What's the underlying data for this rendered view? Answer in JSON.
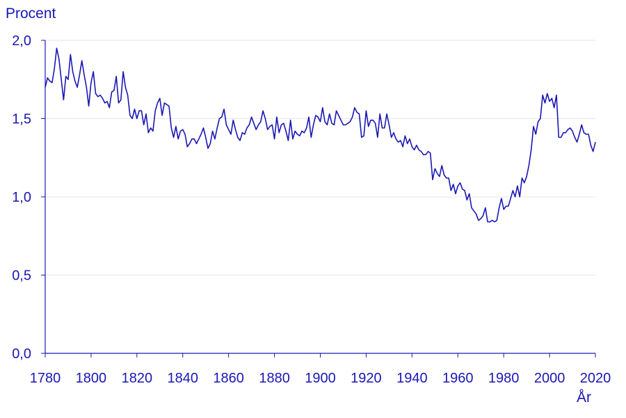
{
  "chart_data": {
    "type": "line",
    "title": "",
    "ylabel": "Procent",
    "xlabel": "År",
    "xlim": [
      1780,
      2020
    ],
    "ylim": [
      0,
      2.0
    ],
    "xticks": [
      "1780",
      "1800",
      "1820",
      "1840",
      "1860",
      "1880",
      "1900",
      "1920",
      "1940",
      "1960",
      "1980",
      "2000",
      "2020"
    ],
    "yticks": [
      "0,0",
      "0,5",
      "1,0",
      "1,5",
      "2,0"
    ],
    "grid": true,
    "color": "#1a17b4",
    "series": [
      {
        "x": [
          1780,
          1781,
          1782,
          1783,
          1784,
          1785,
          1786,
          1787,
          1788,
          1789,
          1790,
          1791,
          1792,
          1793,
          1794,
          1795,
          1796,
          1797,
          1798,
          1799,
          1800,
          1801,
          1802,
          1803,
          1804,
          1805,
          1806,
          1807,
          1808,
          1809,
          1810,
          1811,
          1812,
          1813,
          1814,
          1815,
          1816,
          1817,
          1818,
          1819,
          1820,
          1821,
          1822,
          1823,
          1824,
          1825,
          1826,
          1827,
          1828,
          1829,
          1830,
          1831,
          1832,
          1833,
          1834,
          1835,
          1836,
          1837,
          1838,
          1839,
          1840,
          1841,
          1842,
          1843,
          1844,
          1845,
          1846,
          1847,
          1848,
          1849,
          1850,
          1851,
          1852,
          1853,
          1854,
          1855,
          1856,
          1857,
          1858,
          1859,
          1860,
          1861,
          1862,
          1863,
          1864,
          1865,
          1866,
          1867,
          1868,
          1869,
          1870,
          1871,
          1872,
          1873,
          1874,
          1875,
          1876,
          1877,
          1878,
          1879,
          1880,
          1881,
          1882,
          1883,
          1884,
          1885,
          1886,
          1887,
          1888,
          1889,
          1890,
          1891,
          1892,
          1893,
          1894,
          1895,
          1896,
          1897,
          1898,
          1899,
          1900,
          1901,
          1902,
          1903,
          1904,
          1905,
          1906,
          1907,
          1908,
          1909,
          1910,
          1911,
          1912,
          1913,
          1914,
          1915,
          1916,
          1917,
          1918,
          1919,
          1920,
          1921,
          1922,
          1923,
          1924,
          1925,
          1926,
          1927,
          1928,
          1929,
          1930,
          1931,
          1932,
          1933,
          1934,
          1935,
          1936,
          1937,
          1938,
          1939,
          1940,
          1941,
          1942,
          1943,
          1944,
          1945,
          1946,
          1947,
          1948,
          1949,
          1950,
          1951,
          1952,
          1953,
          1954,
          1955,
          1956,
          1957,
          1958,
          1959,
          1960,
          1961,
          1962,
          1963,
          1964,
          1965,
          1966,
          1967,
          1968,
          1969,
          1970,
          1971,
          1972,
          1973,
          1974,
          1975,
          1976,
          1977,
          1978,
          1979,
          1980,
          1981,
          1982,
          1983,
          1984,
          1985,
          1986,
          1987,
          1988,
          1989,
          1990,
          1991,
          1992,
          1993,
          1994,
          1995,
          1996,
          1997,
          1998,
          1999,
          2000,
          2001,
          2002,
          2003,
          2004,
          2005,
          2006,
          2007,
          2008,
          2009,
          2010,
          2011,
          2012,
          2013,
          2014,
          2015,
          2016,
          2017,
          2018,
          2019,
          2020
        ],
        "y": [
          1.7,
          1.76,
          1.74,
          1.73,
          1.82,
          1.95,
          1.88,
          1.75,
          1.62,
          1.77,
          1.75,
          1.91,
          1.8,
          1.74,
          1.7,
          1.78,
          1.87,
          1.78,
          1.7,
          1.58,
          1.73,
          1.8,
          1.66,
          1.64,
          1.65,
          1.63,
          1.6,
          1.61,
          1.57,
          1.67,
          1.68,
          1.77,
          1.6,
          1.62,
          1.8,
          1.7,
          1.65,
          1.52,
          1.5,
          1.56,
          1.5,
          1.55,
          1.55,
          1.46,
          1.53,
          1.41,
          1.44,
          1.42,
          1.55,
          1.6,
          1.63,
          1.52,
          1.6,
          1.59,
          1.58,
          1.44,
          1.38,
          1.45,
          1.37,
          1.42,
          1.43,
          1.4,
          1.32,
          1.34,
          1.37,
          1.37,
          1.34,
          1.37,
          1.4,
          1.44,
          1.38,
          1.31,
          1.34,
          1.42,
          1.37,
          1.44,
          1.5,
          1.51,
          1.56,
          1.46,
          1.43,
          1.4,
          1.49,
          1.43,
          1.38,
          1.36,
          1.41,
          1.4,
          1.44,
          1.46,
          1.51,
          1.47,
          1.43,
          1.46,
          1.48,
          1.55,
          1.5,
          1.43,
          1.45,
          1.46,
          1.37,
          1.51,
          1.41,
          1.46,
          1.47,
          1.42,
          1.36,
          1.49,
          1.37,
          1.42,
          1.4,
          1.39,
          1.42,
          1.41,
          1.44,
          1.51,
          1.38,
          1.46,
          1.52,
          1.51,
          1.48,
          1.57,
          1.48,
          1.46,
          1.53,
          1.47,
          1.46,
          1.55,
          1.52,
          1.49,
          1.46,
          1.46,
          1.47,
          1.48,
          1.51,
          1.57,
          1.54,
          1.53,
          1.38,
          1.39,
          1.55,
          1.45,
          1.49,
          1.49,
          1.47,
          1.38,
          1.53,
          1.44,
          1.44,
          1.53,
          1.46,
          1.38,
          1.41,
          1.37,
          1.35,
          1.36,
          1.32,
          1.39,
          1.34,
          1.37,
          1.32,
          1.3,
          1.33,
          1.3,
          1.29,
          1.27,
          1.27,
          1.29,
          1.28,
          1.11,
          1.18,
          1.15,
          1.13,
          1.2,
          1.14,
          1.12,
          1.12,
          1.04,
          1.08,
          1.02,
          1.07,
          1.09,
          1.05,
          1.04,
          0.98,
          1.02,
          0.93,
          0.91,
          0.89,
          0.85,
          0.86,
          0.88,
          0.93,
          0.84,
          0.84,
          0.85,
          0.84,
          0.85,
          0.93,
          0.99,
          0.92,
          0.94,
          0.94,
          0.99,
          1.04,
          1.0,
          1.07,
          1.0,
          1.12,
          1.09,
          1.13,
          1.2,
          1.3,
          1.45,
          1.4,
          1.48,
          1.5,
          1.65,
          1.6,
          1.66,
          1.61,
          1.63,
          1.57,
          1.65,
          1.38,
          1.38,
          1.41,
          1.41,
          1.43,
          1.44,
          1.42,
          1.38,
          1.35,
          1.4,
          1.46,
          1.41,
          1.4,
          1.4,
          1.33,
          1.29,
          1.35
        ]
      }
    ]
  }
}
